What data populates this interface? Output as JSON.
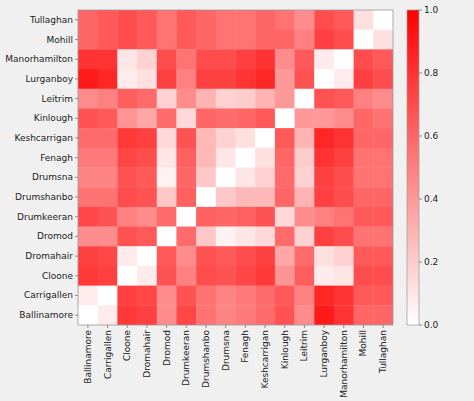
{
  "chart_data": {
    "type": "heatmap",
    "x": [
      "Ballinamore",
      "Carrigallen",
      "Cloone",
      "Dromahair",
      "Dromod",
      "Drumkeeran",
      "Drumshanbo",
      "Drumsna",
      "Fenagh",
      "Keshcarrigan",
      "Kinlough",
      "Leitrim",
      "Lurganboy",
      "Manorhamilton",
      "Mohill",
      "Tullaghan"
    ],
    "y": [
      "Tullaghan",
      "Mohill",
      "Manorhamilton",
      "Lurganboy",
      "Leitrim",
      "Kinlough",
      "Keshcarrigan",
      "Fenagh",
      "Drumsna",
      "Drumshanbo",
      "Drumkeeran",
      "Dromod",
      "Dromahair",
      "Cloone",
      "Carrigallen",
      "Ballinamore"
    ],
    "values": [
      [
        0.6,
        0.65,
        0.7,
        0.65,
        0.55,
        0.65,
        0.6,
        0.55,
        0.55,
        0.6,
        0.55,
        0.45,
        0.7,
        0.65,
        0.12,
        0.0
      ],
      [
        0.6,
        0.65,
        0.7,
        0.65,
        0.55,
        0.65,
        0.6,
        0.55,
        0.55,
        0.6,
        0.6,
        0.5,
        0.75,
        0.7,
        0.0,
        0.12
      ],
      [
        0.8,
        0.8,
        0.1,
        0.18,
        0.7,
        0.55,
        0.7,
        0.7,
        0.75,
        0.8,
        0.45,
        0.65,
        0.08,
        0.0,
        0.7,
        0.65
      ],
      [
        0.9,
        0.85,
        0.08,
        0.12,
        0.75,
        0.5,
        0.75,
        0.75,
        0.8,
        0.85,
        0.4,
        0.68,
        0.0,
        0.08,
        0.75,
        0.7
      ],
      [
        0.45,
        0.5,
        0.63,
        0.58,
        0.18,
        0.45,
        0.3,
        0.18,
        0.2,
        0.3,
        0.4,
        0.0,
        0.68,
        0.65,
        0.5,
        0.45
      ],
      [
        0.68,
        0.65,
        0.42,
        0.35,
        0.58,
        0.15,
        0.6,
        0.58,
        0.6,
        0.65,
        0.0,
        0.4,
        0.4,
        0.45,
        0.6,
        0.55
      ],
      [
        0.58,
        0.58,
        0.78,
        0.75,
        0.15,
        0.68,
        0.28,
        0.18,
        0.12,
        0.0,
        0.65,
        0.3,
        0.85,
        0.8,
        0.6,
        0.6
      ],
      [
        0.52,
        0.52,
        0.73,
        0.7,
        0.1,
        0.62,
        0.28,
        0.1,
        0.0,
        0.12,
        0.6,
        0.2,
        0.8,
        0.75,
        0.55,
        0.55
      ],
      [
        0.48,
        0.48,
        0.68,
        0.65,
        0.05,
        0.6,
        0.22,
        0.0,
        0.1,
        0.18,
        0.58,
        0.18,
        0.75,
        0.7,
        0.55,
        0.55
      ],
      [
        0.55,
        0.55,
        0.7,
        0.68,
        0.22,
        0.62,
        0.0,
        0.22,
        0.28,
        0.28,
        0.6,
        0.3,
        0.75,
        0.7,
        0.6,
        0.6
      ],
      [
        0.72,
        0.68,
        0.5,
        0.45,
        0.58,
        0.0,
        0.62,
        0.6,
        0.62,
        0.68,
        0.15,
        0.45,
        0.5,
        0.55,
        0.65,
        0.65
      ],
      [
        0.45,
        0.45,
        0.68,
        0.65,
        0.0,
        0.58,
        0.22,
        0.05,
        0.1,
        0.15,
        0.58,
        0.18,
        0.75,
        0.7,
        0.55,
        0.55
      ],
      [
        0.75,
        0.72,
        0.08,
        0.0,
        0.65,
        0.45,
        0.68,
        0.65,
        0.7,
        0.75,
        0.35,
        0.58,
        0.12,
        0.18,
        0.65,
        0.65
      ],
      [
        0.78,
        0.75,
        0.0,
        0.08,
        0.68,
        0.5,
        0.7,
        0.68,
        0.73,
        0.78,
        0.42,
        0.63,
        0.08,
        0.1,
        0.7,
        0.7
      ],
      [
        0.08,
        0.0,
        0.75,
        0.72,
        0.45,
        0.68,
        0.55,
        0.48,
        0.52,
        0.58,
        0.65,
        0.5,
        0.85,
        0.8,
        0.65,
        0.65
      ],
      [
        0.0,
        0.08,
        0.78,
        0.75,
        0.45,
        0.72,
        0.55,
        0.48,
        0.52,
        0.58,
        0.68,
        0.45,
        0.9,
        0.8,
        0.6,
        0.6
      ]
    ],
    "color": "#ff0000",
    "zlim": [
      0.0,
      1.0
    ],
    "zticks": [
      {
        "value": 0.0,
        "label": "0.0"
      },
      0.2,
      0.4,
      0.6,
      0.8,
      {
        "value": 1.0,
        "label": "1.0"
      }
    ]
  }
}
